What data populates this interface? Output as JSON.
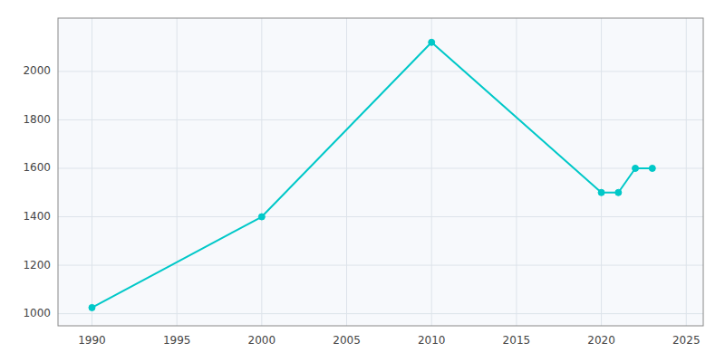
{
  "chart_data": {
    "type": "line",
    "x": [
      1990,
      2000,
      2010,
      2020,
      2021,
      2022,
      2023
    ],
    "values": [
      1025,
      1400,
      2120,
      1500,
      1500,
      1600,
      1600
    ],
    "color": "#00C8C8",
    "marker": "circle",
    "xlim": [
      1988,
      2026
    ],
    "ylim": [
      950,
      2220
    ],
    "xticks": [
      1990,
      1995,
      2000,
      2005,
      2010,
      2015,
      2020,
      2025
    ],
    "yticks": [
      1000,
      1200,
      1400,
      1600,
      1800,
      2000
    ],
    "grid": true
  }
}
